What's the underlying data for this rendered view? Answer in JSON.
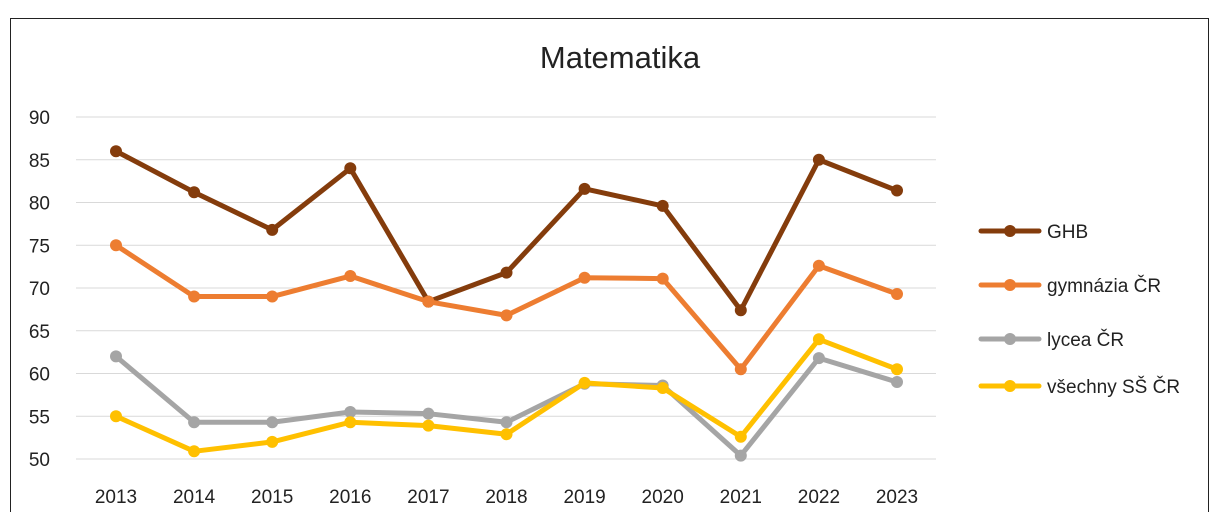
{
  "chart_data": {
    "type": "line",
    "title": "Matematika",
    "xlabel": "",
    "ylabel": "",
    "ylim": [
      50,
      90
    ],
    "y_ticks": [
      50,
      55,
      60,
      65,
      70,
      75,
      80,
      85,
      90
    ],
    "grid": true,
    "legend_position": "right",
    "categories": [
      "2013",
      "2014",
      "2015",
      "2016",
      "2017",
      "2018",
      "2019",
      "2020",
      "2021",
      "2022",
      "2023"
    ],
    "series": [
      {
        "name": "GHB",
        "color": "#843C0C",
        "values": [
          86,
          81.2,
          76.8,
          84,
          68.4,
          71.8,
          81.6,
          79.6,
          67.4,
          85,
          81.4
        ]
      },
      {
        "name": "gymnázia ČR",
        "color": "#ED7D31",
        "values": [
          75,
          69,
          69,
          71.4,
          68.4,
          66.8,
          71.2,
          71.1,
          60.5,
          72.6,
          69.3
        ]
      },
      {
        "name": "lycea ČR",
        "color": "#A5A5A5",
        "values": [
          62,
          54.3,
          54.3,
          55.5,
          55.3,
          54.3,
          58.8,
          58.6,
          50.4,
          61.8,
          59
        ]
      },
      {
        "name": "všechny SŠ ČR",
        "color": "#FFC000",
        "values": [
          55,
          50.9,
          52,
          54.3,
          53.9,
          52.9,
          58.9,
          58.3,
          52.6,
          64,
          60.5
        ]
      }
    ]
  }
}
